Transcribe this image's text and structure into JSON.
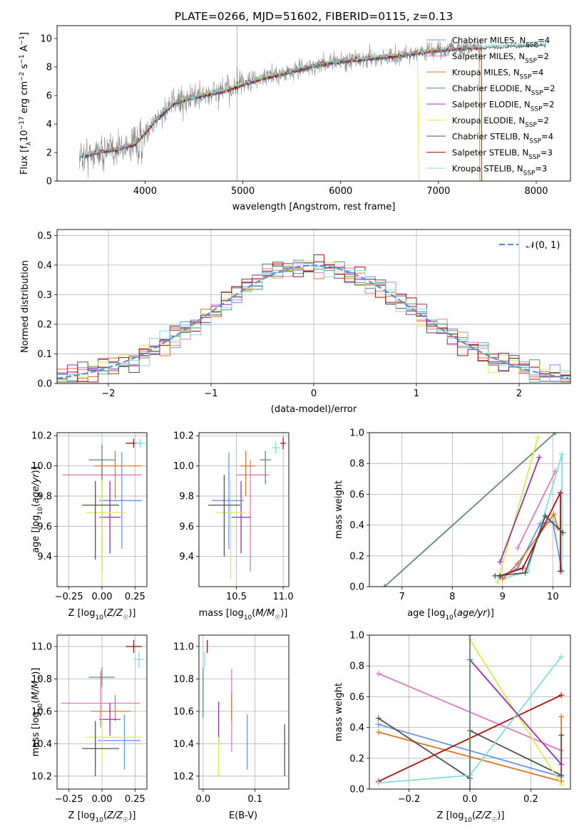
{
  "colors": {
    "chabrier_miles": "#6495ed",
    "salpeter_miles": "#e377c2",
    "kroupa_miles": "#e37222",
    "chabrier_elodie": "#5e8c6a",
    "salpeter_elodie": "#9b30b0",
    "kroupa_elodie": "#d4ee4c",
    "chabrier_stelib": "#505050",
    "salpeter_stelib": "#aa1010",
    "kroupa_stelib": "#80dde3",
    "observed": "#808080",
    "dashed": "#5a8ad8"
  },
  "chart_data": [
    {
      "id": "spectrum",
      "type": "line",
      "title": "PLATE=0266, MJD=51602, FIBERID=0115, z=0.13",
      "xlabel": "wavelength [Angstrom, rest frame]",
      "ylabel": "Flux [f_λ10^-17 erg cm^-2 s^-1 A^-1]",
      "xlim": [
        3100,
        8350
      ],
      "ylim": [
        0,
        10.9
      ],
      "xticks": [
        4000,
        5000,
        6000,
        7000,
        8000
      ],
      "yticks": [
        0,
        2,
        4,
        6,
        8,
        10
      ],
      "grid": false,
      "legend_position": "top-right",
      "legend": [
        "Chabrier MILES, N_SSP=4",
        "Salpeter MILES, N_SSP=2",
        "Kroupa MILES, N_SSP=4",
        "Chabrier ELODIE, N_SSP=2",
        "Salpeter ELODIE, N_SSP=2",
        "Kroupa ELODIE, N_SSP=2",
        "Chabrier STELIB, N_SSP=4",
        "Salpeter STELIB, N_SSP=3",
        "Kroupa STELIB, N_SSP=3"
      ],
      "continuum": {
        "x": [
          3330,
          3500,
          3700,
          3900,
          4100,
          4300,
          4500,
          4800,
          5000,
          5200,
          5500,
          5800,
          6000,
          6300,
          6600,
          6900,
          7200,
          7500,
          7800,
          8100
        ],
        "y": [
          1.7,
          2.0,
          2.2,
          2.6,
          4.2,
          5.5,
          5.9,
          6.3,
          6.8,
          7.2,
          7.7,
          8.2,
          8.4,
          8.6,
          8.8,
          9.1,
          9.3,
          9.4,
          9.5,
          9.6
        ]
      }
    },
    {
      "id": "residuals",
      "type": "histogram",
      "xlabel": "(data-model)/error",
      "ylabel": "Normed distribution",
      "xlim": [
        -2.5,
        2.5
      ],
      "ylim": [
        0,
        0.52
      ],
      "xticks": [
        -2,
        -1,
        0,
        1,
        2
      ],
      "xtick_labels": [
        "−2",
        "−1",
        "0",
        "1",
        "2"
      ],
      "yticks": [
        0.0,
        0.1,
        0.2,
        0.3,
        0.4,
        0.5
      ],
      "ytick_labels": [
        "0.0",
        "0.1",
        "0.2",
        "0.3",
        "0.4",
        "0.5"
      ],
      "grid": true,
      "legend_position": "top-right",
      "legend": [
        "𝒩(0, 1)"
      ],
      "bin_width": 0.1
    },
    {
      "id": "age_vs_Z",
      "type": "errorbar",
      "xlabel": "Z [log10(Z/Z☉)]",
      "ylabel": "age [log10(age/yr)]",
      "xlim": [
        -0.34,
        0.34
      ],
      "ylim": [
        9.2,
        10.22
      ],
      "xticks": [
        -0.25,
        0.0,
        0.25
      ],
      "xtick_labels": [
        "−0.25",
        "0.00",
        "0.25"
      ],
      "yticks": [
        9.4,
        9.6,
        9.8,
        10.0,
        10.2
      ],
      "ytick_labels": [
        "9.4",
        "9.6",
        "9.8",
        "10.0",
        "10.2"
      ],
      "grid": true,
      "points": [
        {
          "x": 0.15,
          "y": 9.77,
          "xerr": [
            0.17,
            0.15
          ],
          "yerr": [
            0.32,
            0.32
          ],
          "color": "chabrier_miles"
        },
        {
          "x": 0.0,
          "y": 9.94,
          "xerr": [
            0.3,
            0.3
          ],
          "yerr": [
            0.64,
            0.1
          ],
          "color": "salpeter_miles"
        },
        {
          "x": 0.1,
          "y": 10.0,
          "xerr": [
            0.16,
            0.2
          ],
          "yerr": [
            0.22,
            0.1
          ],
          "color": "kroupa_miles"
        },
        {
          "x": 0.0,
          "y": 10.04,
          "xerr": [
            0.1,
            0.1
          ],
          "yerr": [
            0.18,
            0.1
          ],
          "color": "chabrier_elodie"
        },
        {
          "x": 0.06,
          "y": 9.66,
          "xerr": [
            0.08,
            0.08
          ],
          "yerr": [
            0.24,
            0.24
          ],
          "color": "salpeter_elodie"
        },
        {
          "x": 0.0,
          "y": 9.69,
          "xerr": [
            0.12,
            0.18
          ],
          "yerr": [
            0.45,
            0.22
          ],
          "color": "kroupa_elodie"
        },
        {
          "x": -0.05,
          "y": 9.74,
          "xerr": [
            0.1,
            0.18
          ],
          "yerr": [
            0.36,
            0.16
          ],
          "color": "chabrier_stelib"
        },
        {
          "x": 0.24,
          "y": 10.15,
          "xerr": [
            0.06,
            0.06
          ],
          "yerr": [
            0.03,
            0.03
          ],
          "color": "salpeter_stelib"
        },
        {
          "x": 0.29,
          "y": 10.15,
          "xerr": [
            0.04,
            0.04
          ],
          "yerr": [
            0.03,
            0.03
          ],
          "color": "kroupa_stelib"
        }
      ]
    },
    {
      "id": "age_vs_mass",
      "type": "errorbar",
      "xlabel": "mass [log10(M/M☉)]",
      "ylabel": "",
      "xlim": [
        10.1,
        11.06
      ],
      "ylim": [
        9.2,
        10.22
      ],
      "xticks": [
        10.5,
        11.0
      ],
      "xtick_labels": [
        "10.5",
        "11.0"
      ],
      "yticks": [
        9.4,
        9.6,
        9.8,
        10.0,
        10.2
      ],
      "ytick_labels": [
        "9.4",
        "9.6",
        "9.8",
        "10.0",
        "10.2"
      ],
      "grid": true,
      "points": [
        {
          "x": 10.42,
          "y": 9.77,
          "xerr": [
            0.18,
            0.16
          ],
          "yerr": [
            0.32,
            0.32
          ],
          "color": "chabrier_miles"
        },
        {
          "x": 10.65,
          "y": 9.94,
          "xerr": [
            0.15,
            0.2
          ],
          "yerr": [
            0.64,
            0.1
          ],
          "color": "salpeter_miles"
        },
        {
          "x": 10.6,
          "y": 10.0,
          "xerr": [
            0.06,
            0.1
          ],
          "yerr": [
            0.2,
            0.1
          ],
          "color": "kroupa_miles"
        },
        {
          "x": 10.81,
          "y": 10.04,
          "xerr": [
            0.06,
            0.06
          ],
          "yerr": [
            0.16,
            0.06
          ],
          "color": "chabrier_elodie"
        },
        {
          "x": 10.55,
          "y": 9.66,
          "xerr": [
            0.1,
            0.1
          ],
          "yerr": [
            0.24,
            0.24
          ],
          "color": "salpeter_elodie"
        },
        {
          "x": 10.44,
          "y": 9.69,
          "xerr": [
            0.16,
            0.16
          ],
          "yerr": [
            0.44,
            0.22
          ],
          "color": "kroupa_elodie"
        },
        {
          "x": 10.37,
          "y": 9.74,
          "xerr": [
            0.17,
            0.17
          ],
          "yerr": [
            0.34,
            0.2
          ],
          "color": "chabrier_stelib"
        },
        {
          "x": 11.0,
          "y": 10.15,
          "xerr": [
            0.03,
            0.03
          ],
          "yerr": [
            0.04,
            0.04
          ],
          "color": "salpeter_stelib"
        },
        {
          "x": 10.92,
          "y": 10.12,
          "xerr": [
            0.04,
            0.04
          ],
          "yerr": [
            0.04,
            0.04
          ],
          "color": "kroupa_stelib"
        }
      ]
    },
    {
      "id": "mw_vs_age",
      "type": "line",
      "xlabel": "age [log10(age/yr)]",
      "ylabel": "mass weight",
      "xlim": [
        6.35,
        10.35
      ],
      "ylim": [
        0,
        1.0
      ],
      "xticks": [
        7,
        8,
        9,
        10
      ],
      "xtick_labels": [
        "7",
        "8",
        "9",
        "10"
      ],
      "yticks": [
        0.0,
        0.2,
        0.4,
        0.6,
        0.8,
        1.0
      ],
      "ytick_labels": [
        "0.0",
        "0.2",
        "0.4",
        "0.6",
        "0.8",
        "1.0"
      ],
      "grid": true,
      "series": [
        {
          "color": "chabrier_elodie",
          "x": [
            6.65,
            10.05
          ],
          "y": [
            0.0,
            1.0
          ]
        },
        {
          "color": "kroupa_elodie",
          "x": [
            8.9,
            9.7
          ],
          "y": [
            0.03,
            0.97
          ]
        },
        {
          "color": "salpeter_elodie",
          "x": [
            8.95,
            9.73
          ],
          "y": [
            0.16,
            0.84
          ]
        },
        {
          "color": "salpeter_miles",
          "x": [
            9.3,
            10.05
          ],
          "y": [
            0.25,
            0.75
          ]
        },
        {
          "color": "kroupa_stelib",
          "x": [
            9.0,
            9.5,
            10.18,
            10.18
          ],
          "y": [
            0.05,
            0.1,
            0.86,
            0.1
          ]
        },
        {
          "color": "chabrier_miles",
          "x": [
            8.95,
            9.3,
            9.75,
            10.0,
            10.18
          ],
          "y": [
            0.06,
            0.12,
            0.41,
            0.42,
            0.1
          ]
        },
        {
          "color": "kroupa_miles",
          "x": [
            9.0,
            9.3,
            10.02,
            10.1
          ],
          "y": [
            0.05,
            0.15,
            0.47,
            0.38
          ]
        },
        {
          "color": "salpeter_stelib",
          "x": [
            8.95,
            9.4,
            10.15,
            10.15
          ],
          "y": [
            0.07,
            0.12,
            0.61,
            0.1
          ]
        },
        {
          "color": "chabrier_stelib",
          "x": [
            8.85,
            9.45,
            9.85,
            10.2
          ],
          "y": [
            0.07,
            0.09,
            0.46,
            0.35
          ]
        }
      ]
    },
    {
      "id": "mass_vs_Z",
      "type": "errorbar",
      "xlabel": "Z [log10(Z/Z☉)]",
      "ylabel": "mass [log10(M/M☉)]",
      "xlim": [
        -0.34,
        0.34
      ],
      "ylim": [
        10.12,
        11.07
      ],
      "xticks": [
        -0.25,
        0.0,
        0.25
      ],
      "xtick_labels": [
        "−0.25",
        "0.00",
        "0.25"
      ],
      "yticks": [
        10.2,
        10.4,
        10.6,
        10.8,
        11.0
      ],
      "ytick_labels": [
        "10.2",
        "10.4",
        "10.6",
        "10.8",
        "11.0"
      ],
      "grid": true,
      "points": [
        {
          "x": 0.17,
          "y": 10.42,
          "xerr": [
            0.2,
            0.12
          ],
          "yerr": [
            0.18,
            0.16
          ],
          "color": "chabrier_miles"
        },
        {
          "x": -0.01,
          "y": 10.65,
          "xerr": [
            0.3,
            0.3
          ],
          "yerr": [
            0.15,
            0.2
          ],
          "color": "salpeter_miles"
        },
        {
          "x": 0.1,
          "y": 10.6,
          "xerr": [
            0.18,
            0.12
          ],
          "yerr": [
            0.06,
            0.1
          ],
          "color": "kroupa_miles"
        },
        {
          "x": 0.0,
          "y": 10.81,
          "xerr": [
            0.1,
            0.1
          ],
          "yerr": [
            0.06,
            0.06
          ],
          "color": "chabrier_elodie"
        },
        {
          "x": 0.06,
          "y": 10.55,
          "xerr": [
            0.08,
            0.08
          ],
          "yerr": [
            0.1,
            0.1
          ],
          "color": "salpeter_elodie"
        },
        {
          "x": 0.0,
          "y": 10.44,
          "xerr": [
            0.12,
            0.3
          ],
          "yerr": [
            0.16,
            0.16
          ],
          "color": "kroupa_elodie"
        },
        {
          "x": -0.05,
          "y": 10.37,
          "xerr": [
            0.1,
            0.18
          ],
          "yerr": [
            0.17,
            0.17
          ],
          "color": "chabrier_stelib"
        },
        {
          "x": 0.24,
          "y": 11.0,
          "xerr": [
            0.06,
            0.06
          ],
          "yerr": [
            0.04,
            0.04
          ],
          "color": "salpeter_stelib"
        },
        {
          "x": 0.28,
          "y": 10.92,
          "xerr": [
            0.04,
            0.04
          ],
          "yerr": [
            0.05,
            0.05
          ],
          "color": "kroupa_stelib"
        }
      ]
    },
    {
      "id": "mass_vs_ebv",
      "type": "errorbar",
      "xlabel": "E(B-V)",
      "ylabel": "",
      "xlim": [
        -0.008,
        0.165
      ],
      "ylim": [
        10.12,
        11.07
      ],
      "xticks": [
        0.0,
        0.1
      ],
      "xtick_labels": [
        "0.0",
        "0.1"
      ],
      "yticks": [
        10.2,
        10.4,
        10.6,
        10.8,
        11.0
      ],
      "ytick_labels": [
        "10.2",
        "10.4",
        "10.6",
        "10.8",
        "11.0"
      ],
      "grid": true,
      "points": [
        {
          "x": 0.085,
          "y": 10.42,
          "yerr": [
            0.18,
            0.16
          ],
          "color": "chabrier_miles"
        },
        {
          "x": 0.055,
          "y": 10.65,
          "yerr": [
            0.3,
            0.21
          ],
          "color": "salpeter_miles"
        },
        {
          "x": 0.055,
          "y": 10.6,
          "yerr": [
            0.06,
            0.12
          ],
          "color": "kroupa_miles"
        },
        {
          "x": 0.0,
          "y": 10.81,
          "yerr": [
            0.25,
            0.06
          ],
          "color": "chabrier_elodie"
        },
        {
          "x": 0.03,
          "y": 10.55,
          "yerr": [
            0.15,
            0.11
          ],
          "color": "salpeter_elodie"
        },
        {
          "x": 0.03,
          "y": 10.3,
          "yerr": [
            0.1,
            0.14
          ],
          "color": "kroupa_elodie"
        },
        {
          "x": 0.157,
          "y": 10.37,
          "yerr": [
            0.17,
            0.15
          ],
          "color": "chabrier_stelib"
        },
        {
          "x": 0.008,
          "y": 11.0,
          "yerr": [
            0.04,
            0.04
          ],
          "color": "salpeter_stelib"
        },
        {
          "x": 0.003,
          "y": 10.92,
          "yerr": [
            0.05,
            0.05
          ],
          "color": "kroupa_stelib"
        }
      ]
    },
    {
      "id": "mw_vs_Z",
      "type": "line",
      "xlabel": "Z [log10(Z/Z☉)]",
      "ylabel": "mass weight",
      "xlim": [
        -0.33,
        0.33
      ],
      "ylim": [
        0,
        1.0
      ],
      "xticks": [
        -0.2,
        0.0,
        0.2
      ],
      "xtick_labels": [
        "−0.2",
        "0.0",
        "0.2"
      ],
      "yticks": [
        0.0,
        0.2,
        0.4,
        0.6,
        0.8,
        1.0
      ],
      "ytick_labels": [
        "0.0",
        "0.2",
        "0.4",
        "0.6",
        "0.8",
        "1.0"
      ],
      "grid": true,
      "series": [
        {
          "color": "salpeter_miles",
          "x": [
            -0.3,
            0.3
          ],
          "y": [
            0.75,
            0.25
          ]
        },
        {
          "color": "chabrier_miles",
          "x": [
            -0.3,
            0.3
          ],
          "y": [
            0.42,
            0.08
          ]
        },
        {
          "color": "kroupa_miles",
          "x": [
            -0.3,
            0.3,
            0.3
          ],
          "y": [
            0.37,
            0.05,
            0.47
          ]
        },
        {
          "color": "chabrier_stelib",
          "x": [
            -0.3,
            0.0,
            0.0,
            0.3,
            0.3
          ],
          "y": [
            0.46,
            0.07,
            0.38,
            0.09,
            0.35
          ]
        },
        {
          "color": "salpeter_stelib",
          "x": [
            -0.3,
            0.3
          ],
          "y": [
            0.05,
            0.61
          ]
        },
        {
          "color": "kroupa_stelib",
          "x": [
            -0.3,
            0.0,
            0.3
          ],
          "y": [
            0.04,
            0.09,
            0.86
          ]
        },
        {
          "color": "kroupa_elodie",
          "x": [
            0.0,
            0.3
          ],
          "y": [
            0.97,
            0.03
          ]
        },
        {
          "color": "salpeter_elodie",
          "x": [
            0.0,
            0.3
          ],
          "y": [
            0.84,
            0.16
          ]
        },
        {
          "color": "chabrier_elodie",
          "x": [
            0.0,
            0.0
          ],
          "y": [
            0.0,
            1.0
          ]
        }
      ]
    }
  ]
}
